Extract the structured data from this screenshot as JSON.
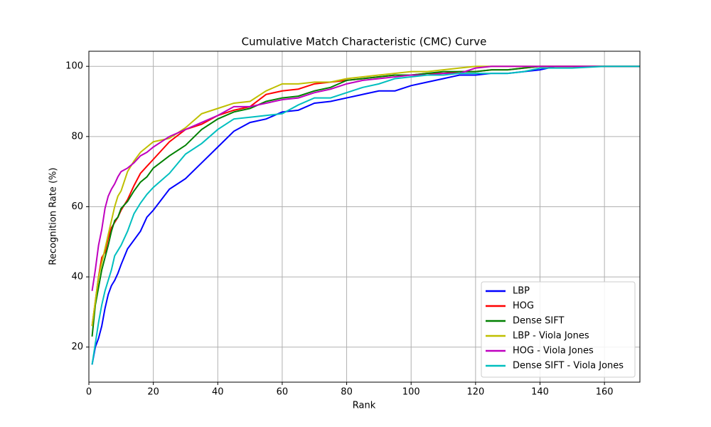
{
  "chart_data": {
    "type": "line",
    "title": "Cumulative Match Characteristic (CMC) Curve",
    "x_label": "Rank",
    "y_label": "Recognition Rate (%)",
    "x": [
      1,
      2,
      3,
      4,
      5,
      6,
      7,
      8,
      9,
      10,
      12,
      14,
      16,
      18,
      20,
      25,
      30,
      35,
      40,
      45,
      50,
      55,
      60,
      65,
      70,
      75,
      80,
      85,
      90,
      95,
      100,
      105,
      110,
      115,
      120,
      125,
      130,
      135,
      140,
      145,
      150,
      160,
      171
    ],
    "series": [
      {
        "name": "LBP",
        "color": "#0000ff",
        "values": [
          15,
          20,
          22.5,
          26,
          31,
          35,
          37.5,
          39,
          41,
          43.5,
          48,
          50.5,
          53,
          57,
          59,
          65,
          68,
          72.5,
          77,
          81.5,
          84,
          85,
          87,
          87.5,
          89.5,
          90,
          91,
          92,
          93,
          93,
          94.5,
          95.5,
          96.5,
          97.5,
          97.5,
          98,
          98,
          98.5,
          99,
          100,
          100,
          100,
          100
        ]
      },
      {
        "name": "HOG",
        "color": "#ff0000",
        "values": [
          26,
          33,
          40,
          45.5,
          47,
          51,
          54,
          55.5,
          57,
          59,
          62,
          66,
          69.5,
          71.5,
          73.5,
          78.5,
          82,
          83.5,
          86,
          87.5,
          88.5,
          92,
          93,
          93.5,
          95,
          95.5,
          96,
          96.5,
          97,
          97.5,
          97.5,
          98,
          98,
          98.5,
          98.5,
          99,
          99,
          99.5,
          100,
          100,
          100,
          100,
          100
        ]
      },
      {
        "name": "Dense SIFT",
        "color": "#008000",
        "values": [
          23,
          32,
          37,
          42,
          45.5,
          49,
          53,
          56,
          57,
          59.5,
          61.5,
          64.5,
          67,
          68.5,
          71,
          74.5,
          77.5,
          82,
          85,
          87,
          88,
          90,
          91,
          91.5,
          93,
          94,
          96,
          96.5,
          97,
          97.5,
          97.5,
          98,
          98.5,
          98.5,
          98.5,
          99,
          99,
          99.5,
          100,
          100,
          100,
          100,
          100
        ]
      },
      {
        "name": "LBP - Viola Jones",
        "color": "#bfbf00",
        "values": [
          26,
          33,
          40,
          44,
          48,
          52,
          56,
          60,
          63,
          64.5,
          70,
          73,
          75.5,
          77,
          78.5,
          79.5,
          82.5,
          86.5,
          88,
          89.5,
          90,
          93,
          95,
          95,
          95.5,
          95.5,
          96.5,
          97,
          97.5,
          98,
          98.5,
          98.5,
          99,
          99.5,
          100,
          100,
          100,
          100,
          100,
          100,
          100,
          100,
          100
        ]
      },
      {
        "name": "HOG - Viola Jones",
        "color": "#bf00bf",
        "values": [
          36,
          42,
          49,
          53.5,
          59.5,
          63,
          65,
          66.5,
          68.5,
          70,
          71,
          72.5,
          74.5,
          75.5,
          77,
          80,
          82,
          84,
          86,
          88.5,
          88.5,
          89.5,
          90.5,
          91,
          92.5,
          93.5,
          95,
          96,
          96.5,
          97,
          97.5,
          97.5,
          98,
          98,
          99.5,
          100,
          100,
          100,
          100,
          100,
          100,
          100,
          100
        ]
      },
      {
        "name": "Dense SIFT - Viola Jones",
        "color": "#00bfbf",
        "values": [
          15,
          21,
          27,
          32,
          36,
          39,
          42,
          46,
          47.5,
          49,
          53,
          58,
          61,
          63.5,
          65.5,
          69.5,
          75,
          78,
          82,
          85,
          85.5,
          86,
          86.5,
          89,
          91,
          91,
          92.5,
          94,
          95,
          96.5,
          97,
          97.5,
          97.5,
          98,
          98,
          98,
          98,
          98.5,
          99.5,
          99.5,
          99.5,
          100,
          100
        ]
      }
    ],
    "xlim": [
      0,
      171
    ],
    "ylim": [
      10,
      104.3
    ],
    "xticks": [
      0,
      20,
      40,
      60,
      80,
      100,
      120,
      140,
      160
    ],
    "yticks": [
      20,
      40,
      60,
      80,
      100
    ],
    "grid": true,
    "legend": "lower right"
  }
}
